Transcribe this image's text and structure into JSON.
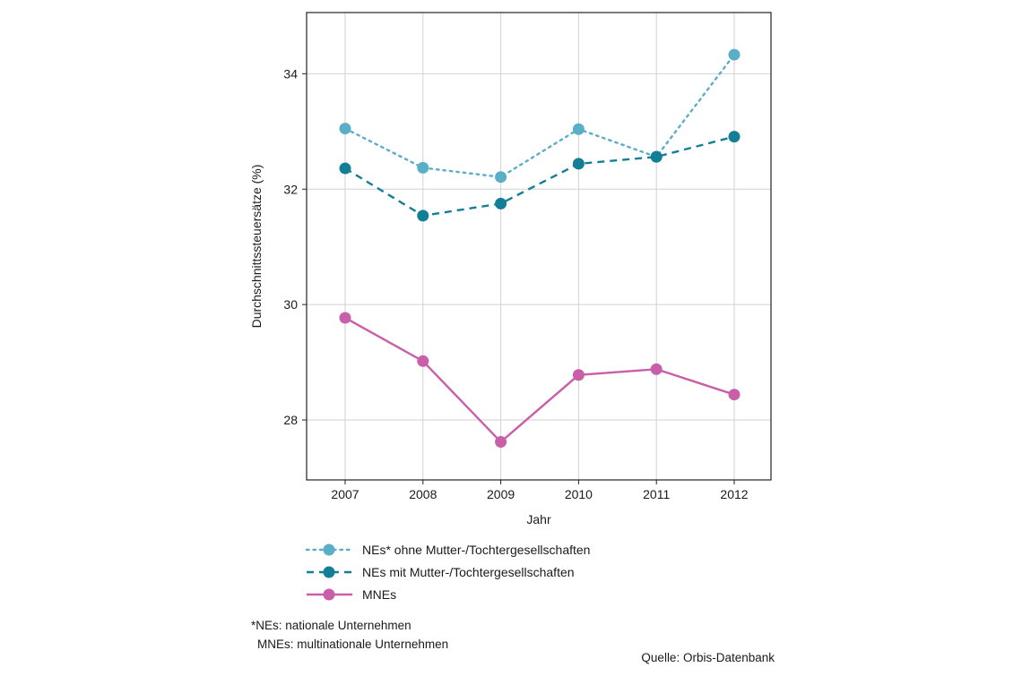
{
  "chart_data": {
    "type": "line",
    "xlabel": "Jahr",
    "ylabel": "Durchschnittssteuersätze (%)",
    "x": [
      "2007",
      "2008",
      "2009",
      "2010",
      "2011",
      "2012"
    ],
    "ylim": [
      27,
      35
    ],
    "yticks": [
      28,
      30,
      32,
      34
    ],
    "grid": true,
    "legend_position": "bottom",
    "series": [
      {
        "name": "NEs* ohne Mutter-/Tochtergesellschaften",
        "values": [
          33.05,
          32.37,
          32.21,
          33.04,
          32.56,
          34.33
        ],
        "color": "#5aaec8",
        "line_style": "dotted"
      },
      {
        "name": "NEs mit Mutter-/Tochtergesellschaften",
        "values": [
          32.36,
          31.54,
          31.75,
          32.44,
          32.56,
          32.91
        ],
        "color": "#137f96",
        "line_style": "dashed"
      },
      {
        "name": "MNEs",
        "values": [
          29.77,
          29.02,
          27.62,
          28.78,
          28.88,
          28.44
        ],
        "color": "#c95fa8",
        "line_style": "solid"
      }
    ]
  },
  "footnote": {
    "line1": "*NEs: nationale Unternehmen",
    "line2": "MNEs: multinationale Unternehmen"
  },
  "source": "Quelle: Orbis-Datenbank"
}
